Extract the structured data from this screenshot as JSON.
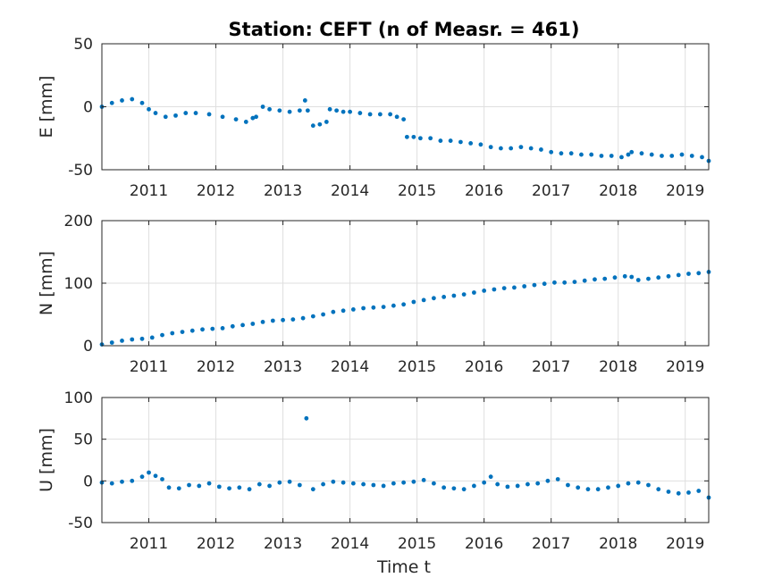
{
  "title": "Station: CEFT (n of Measr. = 461)",
  "xlabel": "Time t",
  "chart_data": [
    {
      "type": "scatter",
      "ylabel": "E [mm]",
      "xlim": [
        2010.3,
        2019.35
      ],
      "ylim": [
        -50,
        50
      ],
      "yticks": [
        -50,
        0,
        50
      ],
      "xticks": [
        2011,
        2012,
        2013,
        2014,
        2015,
        2016,
        2017,
        2018,
        2019
      ],
      "grid": true,
      "color": "#0072bd",
      "series": [
        {
          "x": [
            2010.3,
            2010.45,
            2010.6,
            2010.75,
            2010.9,
            2011.0,
            2011.1,
            2011.25,
            2011.4,
            2011.55,
            2011.7,
            2011.9,
            2012.1,
            2012.3,
            2012.45,
            2012.55,
            2012.6,
            2012.7,
            2012.8,
            2012.95,
            2013.1,
            2013.25,
            2013.33,
            2013.37,
            2013.45,
            2013.55,
            2013.65,
            2013.7,
            2013.8,
            2013.9,
            2014.0,
            2014.15,
            2014.3,
            2014.45,
            2014.6,
            2014.7,
            2014.8,
            2014.85,
            2014.95,
            2015.05,
            2015.2,
            2015.35,
            2015.5,
            2015.65,
            2015.8,
            2015.95,
            2016.1,
            2016.25,
            2016.4,
            2016.55,
            2016.7,
            2016.85,
            2017.0,
            2017.15,
            2017.3,
            2017.45,
            2017.6,
            2017.75,
            2017.9,
            2018.05,
            2018.15,
            2018.2,
            2018.35,
            2018.5,
            2018.65,
            2018.8,
            2018.95,
            2019.1,
            2019.25,
            2019.35
          ],
          "y": [
            0,
            3,
            5,
            6,
            3,
            -2,
            -5,
            -8,
            -7,
            -5,
            -5,
            -6,
            -8,
            -10,
            -12,
            -9,
            -8,
            0,
            -2,
            -3,
            -4,
            -3,
            5,
            -3,
            -15,
            -14,
            -12,
            -2,
            -3,
            -4,
            -4,
            -5,
            -6,
            -6,
            -6,
            -8,
            -10,
            -24,
            -24,
            -25,
            -25,
            -27,
            -27,
            -28,
            -29,
            -30,
            -32,
            -33,
            -33,
            -32,
            -33,
            -34,
            -36,
            -37,
            -37,
            -38,
            -38,
            -39,
            -39,
            -40,
            -38,
            -36,
            -37,
            -38,
            -39,
            -39,
            -38,
            -39,
            -40,
            -43
          ]
        }
      ]
    },
    {
      "type": "scatter",
      "ylabel": "N [mm]",
      "xlim": [
        2010.3,
        2019.35
      ],
      "ylim": [
        0,
        200
      ],
      "yticks": [
        0,
        100,
        200
      ],
      "xticks": [
        2011,
        2012,
        2013,
        2014,
        2015,
        2016,
        2017,
        2018,
        2019
      ],
      "grid": true,
      "color": "#0072bd",
      "series": [
        {
          "x": [
            2010.3,
            2010.45,
            2010.6,
            2010.75,
            2010.9,
            2011.05,
            2011.2,
            2011.35,
            2011.5,
            2011.65,
            2011.8,
            2011.95,
            2012.1,
            2012.25,
            2012.4,
            2012.55,
            2012.7,
            2012.85,
            2013.0,
            2013.15,
            2013.3,
            2013.45,
            2013.6,
            2013.75,
            2013.9,
            2014.05,
            2014.2,
            2014.35,
            2014.5,
            2014.65,
            2014.8,
            2014.95,
            2015.1,
            2015.25,
            2015.4,
            2015.55,
            2015.7,
            2015.85,
            2016.0,
            2016.15,
            2016.3,
            2016.45,
            2016.6,
            2016.75,
            2016.9,
            2017.05,
            2017.2,
            2017.35,
            2017.5,
            2017.65,
            2017.8,
            2017.95,
            2018.1,
            2018.2,
            2018.3,
            2018.45,
            2018.6,
            2018.75,
            2018.9,
            2019.05,
            2019.2,
            2019.35
          ],
          "y": [
            2,
            5,
            8,
            10,
            11,
            13,
            17,
            20,
            22,
            24,
            26,
            27,
            28,
            31,
            33,
            35,
            38,
            40,
            41,
            42,
            44,
            47,
            50,
            54,
            56,
            58,
            60,
            61,
            62,
            64,
            66,
            70,
            73,
            76,
            78,
            80,
            82,
            85,
            88,
            90,
            92,
            93,
            95,
            97,
            99,
            101,
            101,
            102,
            104,
            106,
            107,
            109,
            111,
            110,
            105,
            107,
            109,
            111,
            113,
            115,
            116,
            118
          ]
        }
      ]
    },
    {
      "type": "scatter",
      "ylabel": "U [mm]",
      "xlim": [
        2010.3,
        2019.35
      ],
      "ylim": [
        -50,
        100
      ],
      "yticks": [
        -50,
        0,
        50,
        100
      ],
      "xticks": [
        2011,
        2012,
        2013,
        2014,
        2015,
        2016,
        2017,
        2018,
        2019
      ],
      "grid": true,
      "color": "#0072bd",
      "series": [
        {
          "x": [
            2010.3,
            2010.45,
            2010.6,
            2010.75,
            2010.9,
            2011.0,
            2011.1,
            2011.2,
            2011.3,
            2011.45,
            2011.6,
            2011.75,
            2011.9,
            2012.05,
            2012.2,
            2012.35,
            2012.5,
            2012.65,
            2012.8,
            2012.95,
            2013.1,
            2013.25,
            2013.35,
            2013.45,
            2013.6,
            2013.75,
            2013.9,
            2014.05,
            2014.2,
            2014.35,
            2014.5,
            2014.65,
            2014.8,
            2014.95,
            2015.1,
            2015.25,
            2015.4,
            2015.55,
            2015.7,
            2015.85,
            2016.0,
            2016.1,
            2016.2,
            2016.35,
            2016.5,
            2016.65,
            2016.8,
            2016.95,
            2017.1,
            2017.25,
            2017.4,
            2017.55,
            2017.7,
            2017.85,
            2018.0,
            2018.15,
            2018.3,
            2018.45,
            2018.6,
            2018.75,
            2018.9,
            2019.05,
            2019.2,
            2019.35
          ],
          "y": [
            -2,
            -3,
            -1,
            0,
            5,
            10,
            6,
            2,
            -8,
            -9,
            -5,
            -6,
            -3,
            -7,
            -9,
            -8,
            -10,
            -4,
            -6,
            -2,
            -1,
            -5,
            75,
            -10,
            -4,
            -1,
            -2,
            -3,
            -4,
            -5,
            -6,
            -3,
            -2,
            -1,
            1,
            -3,
            -8,
            -9,
            -10,
            -6,
            -2,
            5,
            -4,
            -7,
            -6,
            -4,
            -3,
            0,
            2,
            -5,
            -8,
            -10,
            -10,
            -8,
            -6,
            -3,
            -2,
            -5,
            -10,
            -13,
            -15,
            -14,
            -12,
            -20
          ]
        }
      ]
    }
  ]
}
